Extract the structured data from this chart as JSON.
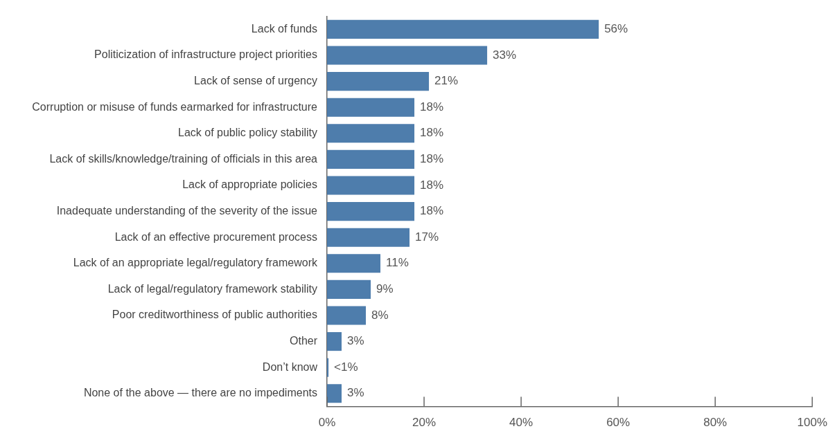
{
  "chart_data": {
    "type": "bar",
    "orientation": "horizontal",
    "categories": [
      "Lack of funds",
      "Politicization of infrastructure project priorities",
      "Lack of sense of urgency",
      "Corruption or misuse of funds earmarked for infrastructure",
      "Lack of public policy stability",
      "Lack of skills/knowledge/training of officials in this area",
      "Lack of appropriate policies",
      "Inadequate understanding of the severity of the issue",
      "Lack of an effective procurement process",
      "Lack of an appropriate legal/regulatory framework",
      "Lack of legal/regulatory framework stability",
      "Poor creditworthiness of public authorities",
      "Other",
      "Don’t know",
      "None of the above — there are no impediments"
    ],
    "values": [
      56,
      33,
      21,
      18,
      18,
      18,
      18,
      18,
      17,
      11,
      9,
      8,
      3,
      0.3,
      3
    ],
    "value_labels": [
      "56%",
      "33%",
      "21%",
      "18%",
      "18%",
      "18%",
      "18%",
      "18%",
      "17%",
      "11%",
      "9%",
      "8%",
      "3%",
      "<1%",
      "3%"
    ],
    "color": "#4e7dac",
    "xlim": [
      0,
      100
    ],
    "xticks": [
      {
        "value": 0,
        "label": "0%"
      },
      {
        "value": 20,
        "label": "20%"
      },
      {
        "value": 40,
        "label": "40%"
      },
      {
        "value": 60,
        "label": "60%"
      },
      {
        "value": 80,
        "label": "80%"
      },
      {
        "value": 100,
        "label": "100%"
      }
    ],
    "grid": false,
    "legend": false
  }
}
